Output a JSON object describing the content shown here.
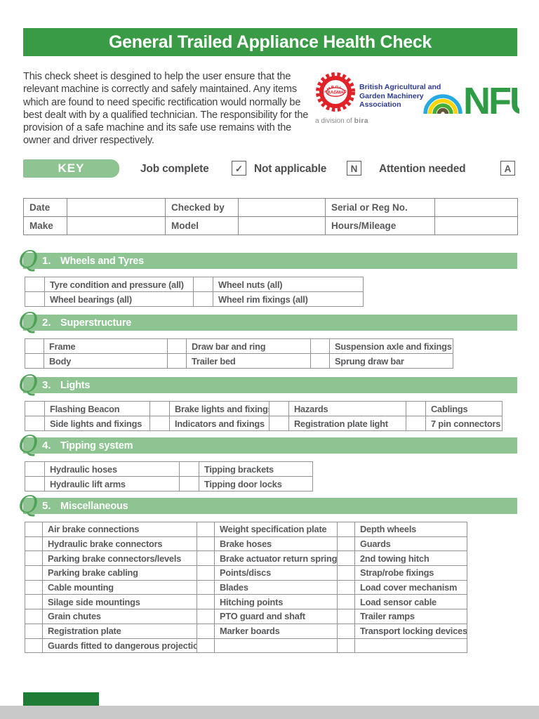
{
  "page": {
    "title": "General Trailed Appliance Health Check",
    "intro": "This check sheet is desgined to help the user ensure that the relevant machine is correctly and safely maintained. Any items which are found to need specific rectification would normally be best dealt with by a qualified technician. The responsibility for the provision of a safe machine and its safe use remains with the owner and driver respectively."
  },
  "logos": {
    "bagma": {
      "badge_center": "BAGMA",
      "badge_ring_top": "SYMBOL OF",
      "badge_ring_bottom": "SERVICE",
      "org_name": "British Agricultural and Garden Machinery Association",
      "division_prefix": "a division of ",
      "division_name": "bira"
    },
    "nfu": {
      "text": "NFU"
    }
  },
  "key": {
    "label": "KEY",
    "items": [
      {
        "label": "Job complete",
        "symbol": "✓"
      },
      {
        "label": "Not applicable",
        "symbol": "N"
      },
      {
        "label": "Attention needed",
        "symbol": "A"
      }
    ]
  },
  "info_table": {
    "rows": [
      [
        {
          "label": "Date",
          "value": ""
        },
        {
          "label": "Checked by",
          "value": ""
        },
        {
          "label": "Serial or Reg No.",
          "value": ""
        }
      ],
      [
        {
          "label": "Make",
          "value": ""
        },
        {
          "label": "Model",
          "value": ""
        },
        {
          "label": "Hours/Mileage",
          "value": ""
        }
      ]
    ]
  },
  "section_prefix_glyph": "Q",
  "sections": [
    {
      "num": "1.",
      "title": "Wheels and Tyres",
      "rows": [
        [
          "Tyre condition and  pressure (all)",
          "Wheel nuts (all)"
        ],
        [
          "Wheel bearings (all)",
          "Wheel rim fixings (all)"
        ]
      ]
    },
    {
      "num": "2.",
      "title": "Superstructure",
      "rows": [
        [
          "Frame",
          "Draw bar and ring",
          "Suspension axle and fixings"
        ],
        [
          "Body",
          "Trailer bed",
          "Sprung draw bar"
        ]
      ]
    },
    {
      "num": "3.",
      "title": "Lights",
      "rows": [
        [
          "Flashing Beacon",
          "Brake lights and fixings",
          "Hazards",
          "Cablings"
        ],
        [
          "Side lights and fixings",
          "Indicators and fixings",
          "Registration plate light",
          "7 pin connectors"
        ]
      ]
    },
    {
      "num": "4.",
      "title": "Tipping system",
      "rows": [
        [
          "Hydraulic hoses",
          "Tipping brackets"
        ],
        [
          "Hydraulic lift arms",
          "Tipping door locks"
        ]
      ]
    },
    {
      "num": "5.",
      "title": "Miscellaneous",
      "rows": [
        [
          "Air brake connections",
          "Weight specification plate",
          "Depth wheels"
        ],
        [
          "Hydraulic brake connectors",
          "Brake hoses",
          "Guards"
        ],
        [
          "Parking brake connectors/levels",
          "Brake actuator return springs",
          "2nd towing hitch"
        ],
        [
          "Parking brake cabling",
          "Points/discs",
          "Strap/robe fixings"
        ],
        [
          "Cable mounting",
          "Blades",
          "Load cover mechanism"
        ],
        [
          "Silage side mountings",
          "Hitching points",
          "Load sensor cable"
        ],
        [
          "Grain chutes",
          "PTO guard and shaft",
          "Trailer ramps"
        ],
        [
          "Registration plate",
          "Marker boards",
          "Transport locking devices"
        ],
        [
          "Guards fitted to dangerous projections",
          "",
          ""
        ]
      ]
    }
  ],
  "colors": {
    "header-green": "#3a9b46",
    "band-green": "#8dc491",
    "q-green": "#4fa257",
    "text-dark": "#3e3e3e",
    "table-text": "#58595b",
    "border-gray": "#919396",
    "key-text": "#4c4d4f",
    "bagma-red": "#e12228",
    "bagma-blue": "#2c3a92",
    "bira-gray": "#8c8c8c",
    "nfu-green": "#2f9c45",
    "bottom-green": "#1e7c35",
    "gap-gray": "#c9c9c9"
  }
}
